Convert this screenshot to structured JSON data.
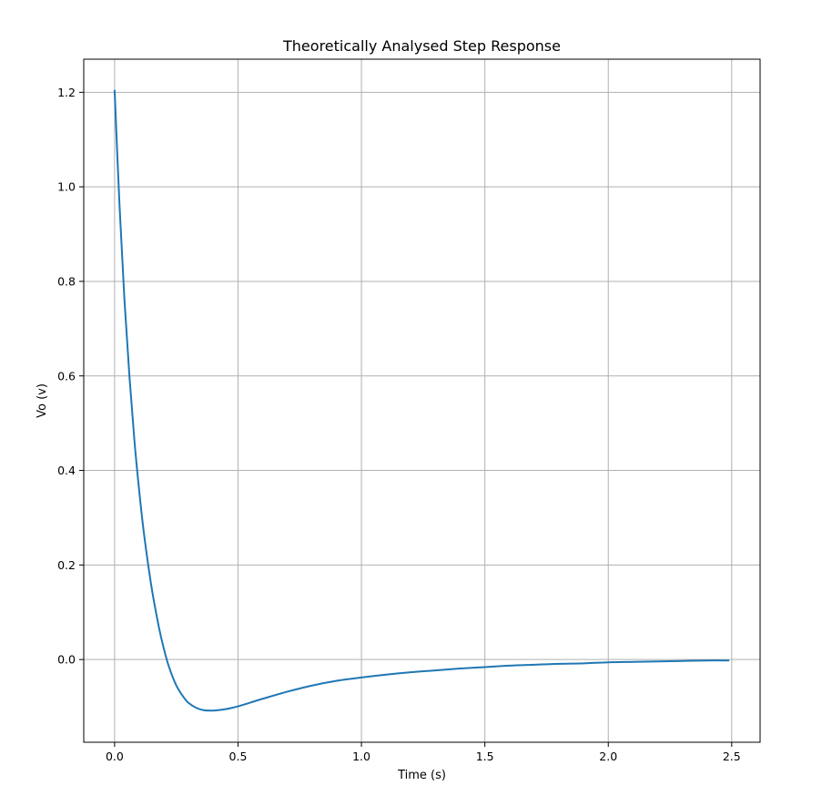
{
  "chart_data": {
    "type": "line",
    "title": "Theoretically Analysed Step Response",
    "xlabel": "Time (s)",
    "ylabel": "Vo (v)",
    "xlim": [
      -0.125,
      2.615
    ],
    "ylim": [
      -0.175,
      1.27
    ],
    "x_ticks": [
      0.0,
      0.5,
      1.0,
      1.5,
      2.0,
      2.5
    ],
    "x_tick_labels": [
      "0.0",
      "0.5",
      "1.0",
      "1.5",
      "2.0",
      "2.5"
    ],
    "y_ticks": [
      0.0,
      0.2,
      0.4,
      0.6,
      0.8,
      1.0,
      1.2
    ],
    "y_tick_labels": [
      "0.0",
      "0.2",
      "0.4",
      "0.6",
      "0.8",
      "1.0",
      "1.2"
    ],
    "grid": true,
    "series": [
      {
        "color": "#1f77b4",
        "x": [
          0.0,
          0.02,
          0.04,
          0.06,
          0.08,
          0.1,
          0.12,
          0.15,
          0.18,
          0.2,
          0.22,
          0.25,
          0.28,
          0.3,
          0.33,
          0.36,
          0.4,
          0.45,
          0.5,
          0.55,
          0.6,
          0.7,
          0.8,
          0.9,
          1.0,
          1.1,
          1.2,
          1.3,
          1.4,
          1.5,
          1.6,
          1.7,
          1.8,
          1.9,
          2.0,
          2.1,
          2.2,
          2.3,
          2.4,
          2.49
        ],
        "y": [
          1.205,
          0.96,
          0.76,
          0.6,
          0.465,
          0.355,
          0.262,
          0.152,
          0.067,
          0.022,
          -0.015,
          -0.055,
          -0.08,
          -0.092,
          -0.102,
          -0.107,
          -0.108,
          -0.105,
          -0.099,
          -0.091,
          -0.083,
          -0.068,
          -0.055,
          -0.045,
          -0.038,
          -0.032,
          -0.027,
          -0.023,
          -0.019,
          -0.016,
          -0.013,
          -0.011,
          -0.009,
          -0.008,
          -0.006,
          -0.005,
          -0.004,
          -0.003,
          -0.002,
          -0.002
        ]
      }
    ]
  }
}
